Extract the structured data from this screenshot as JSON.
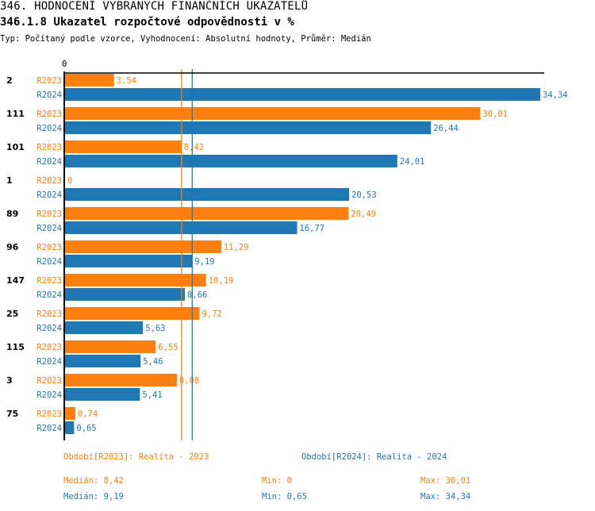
{
  "header": {
    "title": "346. HODNOCENÍ VYBRANÝCH FINANČNÍCH UKAZATELŮ",
    "subtitle": "346.1.8 Ukazatel rozpočtové odpovědnosti v %",
    "info": "Typ: Počítaný podle vzorce, Vyhodnocení: Absolutní hodnoty, Průměr: Medián"
  },
  "colors": {
    "R2023": "#ff7f0e",
    "R2024": "#1f77b4"
  },
  "chart_data": {
    "type": "bar",
    "orientation": "horizontal",
    "title": "346.1.8 Ukazatel rozpočtové odpovědnosti v %",
    "axis_zero_label": "0",
    "xlim": [
      0,
      34.34
    ],
    "categories": [
      "2",
      "111",
      "101",
      "1",
      "89",
      "96",
      "147",
      "25",
      "115",
      "3",
      "75"
    ],
    "series": [
      {
        "name": "R2023",
        "values": [
          3.54,
          30.01,
          8.42,
          0,
          20.49,
          11.29,
          10.19,
          9.72,
          6.55,
          8.08,
          0.74
        ],
        "labels": [
          "3,54",
          "30,01",
          "8,42",
          "0",
          "20,49",
          "11,29",
          "10,19",
          "9,72",
          "6,55",
          "8,08",
          "0,74"
        ]
      },
      {
        "name": "R2024",
        "values": [
          34.34,
          26.44,
          24.01,
          20.53,
          16.77,
          9.19,
          8.66,
          5.63,
          5.46,
          5.41,
          0.65
        ],
        "labels": [
          "34,34",
          "26,44",
          "24,01",
          "20,53",
          "16,77",
          "9,19",
          "8,66",
          "5,63",
          "5,46",
          "5,41",
          "0,65"
        ]
      }
    ],
    "reference_lines": [
      {
        "series": "R2023",
        "type": "median",
        "value": 8.42
      },
      {
        "series": "R2024",
        "type": "median",
        "value": 9.19
      }
    ]
  },
  "legend": {
    "r2023": "Období[R2023]: Realita - 2023",
    "r2024": "Období[R2024]: Realita - 2024"
  },
  "stats": {
    "r2023": {
      "median": "Medián: 8,42",
      "min": "Min: 0",
      "max": "Max: 30,01"
    },
    "r2024": {
      "median": "Medián: 9,19",
      "min": "Min: 0,65",
      "max": "Max: 34,34"
    }
  }
}
